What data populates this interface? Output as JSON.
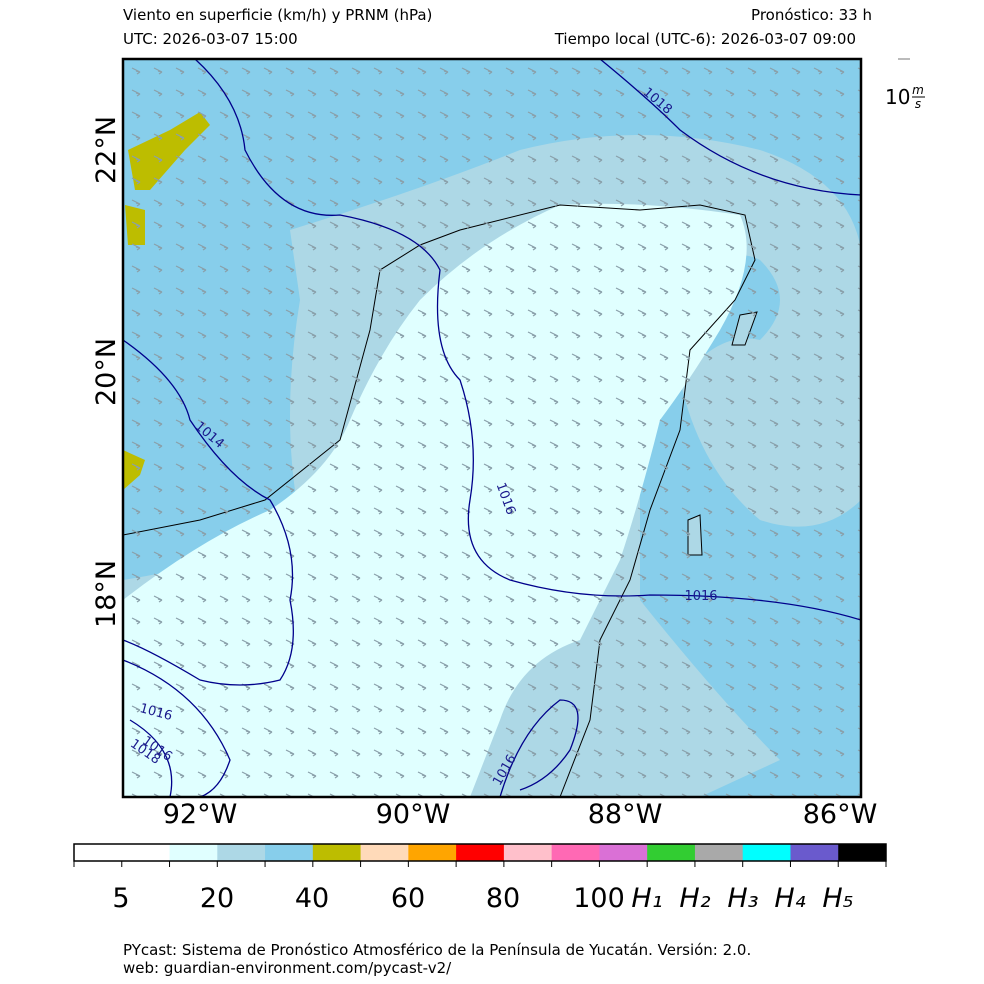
{
  "header": {
    "title": "Viento en superficie (km/h) y PRNM (hPa)",
    "forecast": "Pronóstico: 33 h",
    "utc": "UTC:  2026-03-07 15:00",
    "local": "Tiempo local (UTC-6): 2026-03-07 09:00"
  },
  "wind_key": {
    "value": "10",
    "unit_top": "m",
    "unit_bottom": "s"
  },
  "map": {
    "lon_labels": [
      "92°W",
      "90°W",
      "88°W",
      "86°W"
    ],
    "lat_labels": [
      "22°N",
      "20°N",
      "18°N"
    ],
    "isobar_labels": [
      "1018",
      "1014",
      "1016",
      "1016",
      "1016",
      "1016",
      "1018",
      "1016"
    ]
  },
  "colorbar": {
    "labels": [
      "5",
      "20",
      "40",
      "60",
      "80",
      "100",
      "H₁",
      "H₂",
      "H₃",
      "H₄",
      "H₅"
    ]
  },
  "footer": {
    "line1": "PYcast: Sistema de Pronóstico Atmosférico de la Península de Yucatán. Versión: 2.0.",
    "line2": "web: guardian-environment.com/pycast-v2/"
  }
}
